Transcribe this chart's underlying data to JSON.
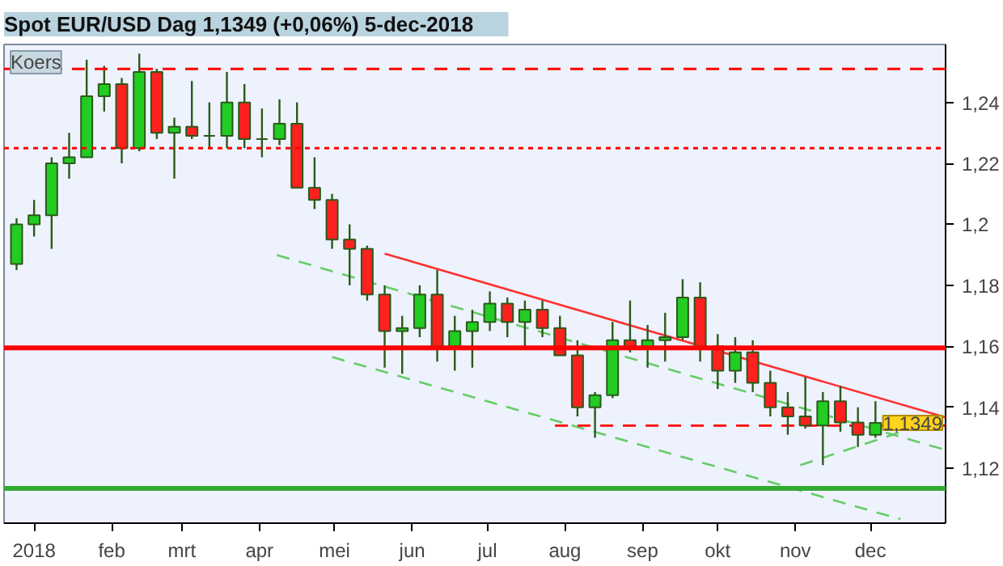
{
  "chart_data": {
    "type": "candlestick",
    "title": "Spot EUR/USD   Dag   1,1349 (+0,06%)   5-dec-2018",
    "subtitle": "Koers",
    "x": [
      "2017-12-25",
      "2018-01-01",
      "2018-01-08",
      "2018-01-15",
      "2018-01-22",
      "2018-01-29",
      "2018-02-05",
      "2018-02-12",
      "2018-02-19",
      "2018-02-26",
      "2018-03-05",
      "2018-03-12",
      "2018-03-19",
      "2018-03-26",
      "2018-04-02",
      "2018-04-09",
      "2018-04-16",
      "2018-04-23",
      "2018-04-30",
      "2018-05-07",
      "2018-05-14",
      "2018-05-21",
      "2018-05-28",
      "2018-06-04",
      "2018-06-11",
      "2018-06-18",
      "2018-06-25",
      "2018-07-02",
      "2018-07-09",
      "2018-07-16",
      "2018-07-23",
      "2018-07-30",
      "2018-08-06",
      "2018-08-13",
      "2018-08-20",
      "2018-08-27",
      "2018-09-03",
      "2018-09-10",
      "2018-09-17",
      "2018-09-24",
      "2018-10-01",
      "2018-10-08",
      "2018-10-15",
      "2018-10-22",
      "2018-10-29",
      "2018-11-05",
      "2018-11-12",
      "2018-11-19",
      "2018-11-26",
      "2018-12-03"
    ],
    "ohlc": [
      [
        1.187,
        1.202,
        1.185,
        1.2
      ],
      [
        1.2,
        1.208,
        1.196,
        1.203
      ],
      [
        1.203,
        1.222,
        1.192,
        1.22
      ],
      [
        1.22,
        1.23,
        1.215,
        1.222
      ],
      [
        1.222,
        1.254,
        1.222,
        1.242
      ],
      [
        1.242,
        1.252,
        1.237,
        1.246
      ],
      [
        1.246,
        1.248,
        1.22,
        1.225
      ],
      [
        1.225,
        1.256,
        1.224,
        1.25
      ],
      [
        1.25,
        1.251,
        1.228,
        1.23
      ],
      [
        1.23,
        1.235,
        1.215,
        1.232
      ],
      [
        1.232,
        1.247,
        1.228,
        1.229
      ],
      [
        1.229,
        1.24,
        1.225,
        1.229
      ],
      [
        1.229,
        1.25,
        1.225,
        1.24
      ],
      [
        1.24,
        1.246,
        1.225,
        1.228
      ],
      [
        1.228,
        1.238,
        1.222,
        1.228
      ],
      [
        1.228,
        1.241,
        1.226,
        1.233
      ],
      [
        1.233,
        1.24,
        1.212,
        1.212
      ],
      [
        1.212,
        1.222,
        1.205,
        1.208
      ],
      [
        1.208,
        1.21,
        1.192,
        1.195
      ],
      [
        1.195,
        1.2,
        1.18,
        1.192
      ],
      [
        1.192,
        1.193,
        1.175,
        1.177
      ],
      [
        1.177,
        1.18,
        1.153,
        1.165
      ],
      [
        1.165,
        1.17,
        1.151,
        1.166
      ],
      [
        1.166,
        1.18,
        1.163,
        1.177
      ],
      [
        1.177,
        1.185,
        1.155,
        1.16
      ],
      [
        1.16,
        1.17,
        1.152,
        1.165
      ],
      [
        1.165,
        1.172,
        1.153,
        1.168
      ],
      [
        1.168,
        1.178,
        1.165,
        1.174
      ],
      [
        1.174,
        1.176,
        1.163,
        1.168
      ],
      [
        1.168,
        1.175,
        1.16,
        1.172
      ],
      [
        1.172,
        1.175,
        1.163,
        1.166
      ],
      [
        1.166,
        1.17,
        1.157,
        1.157
      ],
      [
        1.157,
        1.162,
        1.137,
        1.14
      ],
      [
        1.14,
        1.145,
        1.13,
        1.144
      ],
      [
        1.144,
        1.168,
        1.143,
        1.162
      ],
      [
        1.162,
        1.175,
        1.158,
        1.16
      ],
      [
        1.16,
        1.167,
        1.153,
        1.162
      ],
      [
        1.162,
        1.171,
        1.155,
        1.163
      ],
      [
        1.163,
        1.182,
        1.162,
        1.176
      ],
      [
        1.176,
        1.181,
        1.155,
        1.16
      ],
      [
        1.16,
        1.164,
        1.146,
        1.152
      ],
      [
        1.152,
        1.163,
        1.148,
        1.158
      ],
      [
        1.158,
        1.162,
        1.145,
        1.148
      ],
      [
        1.148,
        1.152,
        1.137,
        1.14
      ],
      [
        1.14,
        1.145,
        1.131,
        1.137
      ],
      [
        1.137,
        1.15,
        1.133,
        1.134
      ],
      [
        1.134,
        1.145,
        1.121,
        1.142
      ],
      [
        1.142,
        1.147,
        1.132,
        1.135
      ],
      [
        1.135,
        1.14,
        1.127,
        1.131
      ],
      [
        1.131,
        1.142,
        1.13,
        1.1349
      ]
    ],
    "series": [
      {
        "type": "line",
        "x": [
          "2018-05-21",
          "2018-12-31"
        ],
        "values": [
          1.1904,
          1.1367
        ],
        "color": "#ff3030",
        "line_style": "solid"
      },
      {
        "type": "line",
        "x": [
          "2018-04-08",
          "2018-12-31"
        ],
        "values": [
          1.1899,
          1.126
        ],
        "color": "#66cc66",
        "line_style": "dashed"
      },
      {
        "type": "line",
        "x": [
          "2018-04-30",
          "2018-12-13"
        ],
        "values": [
          1.1565,
          1.1033
        ],
        "color": "#66cc66",
        "line_style": "dashed"
      },
      {
        "type": "line",
        "x": [
          "2018-11-03",
          "2018-12-31"
        ],
        "values": [
          1.121,
          1.1367
        ],
        "color": "#66cc66",
        "line_style": "dashed"
      },
      {
        "type": "line",
        "x": [
          "2018-07-28",
          "2018-12-31"
        ],
        "values": [
          1.134,
          1.134
        ],
        "color": "#ff0000",
        "line_style": "dashed"
      }
    ],
    "ref_lines": [
      {
        "axis": "y",
        "value": 1.251,
        "color": "#ff0000",
        "line_style": "dashed"
      },
      {
        "axis": "y",
        "value": 1.225,
        "color": "#ff0000",
        "line_style": "dotted"
      },
      {
        "axis": "y",
        "value": 1.1595,
        "color": "#ff0000",
        "line_style": "solid"
      },
      {
        "axis": "y",
        "value": 1.1134,
        "color": "#33aa33",
        "line_style": "solid"
      }
    ],
    "annotations": [
      {
        "text": "1,1349",
        "y": 1.1349
      }
    ],
    "xlim": [
      "2017-12-20",
      "2018-12-31"
    ],
    "xticks": [
      {
        "value": "2018-01-01",
        "label": "2018"
      },
      {
        "value": "2018-02-01",
        "label": "feb"
      },
      {
        "value": "2018-03-01",
        "label": "mrt"
      },
      {
        "value": "2018-04-01",
        "label": "apr"
      },
      {
        "value": "2018-05-01",
        "label": "mei"
      },
      {
        "value": "2018-06-01",
        "label": "jun"
      },
      {
        "value": "2018-07-01",
        "label": "jul"
      },
      {
        "value": "2018-08-01",
        "label": "aug"
      },
      {
        "value": "2018-09-01",
        "label": "sep"
      },
      {
        "value": "2018-10-01",
        "label": "okt"
      },
      {
        "value": "2018-11-01",
        "label": "nov"
      },
      {
        "value": "2018-12-01",
        "label": "dec"
      }
    ],
    "ylim": [
      1.102,
      1.259
    ],
    "yticks": [
      {
        "value": 1.12,
        "label": "1,12"
      },
      {
        "value": 1.14,
        "label": "1,14"
      },
      {
        "value": 1.16,
        "label": "1,16"
      },
      {
        "value": 1.18,
        "label": "1,18"
      },
      {
        "value": 1.2,
        "label": "1,2"
      },
      {
        "value": 1.22,
        "label": "1,22"
      },
      {
        "value": 1.24,
        "label": "1,24"
      }
    ],
    "grid": false
  }
}
